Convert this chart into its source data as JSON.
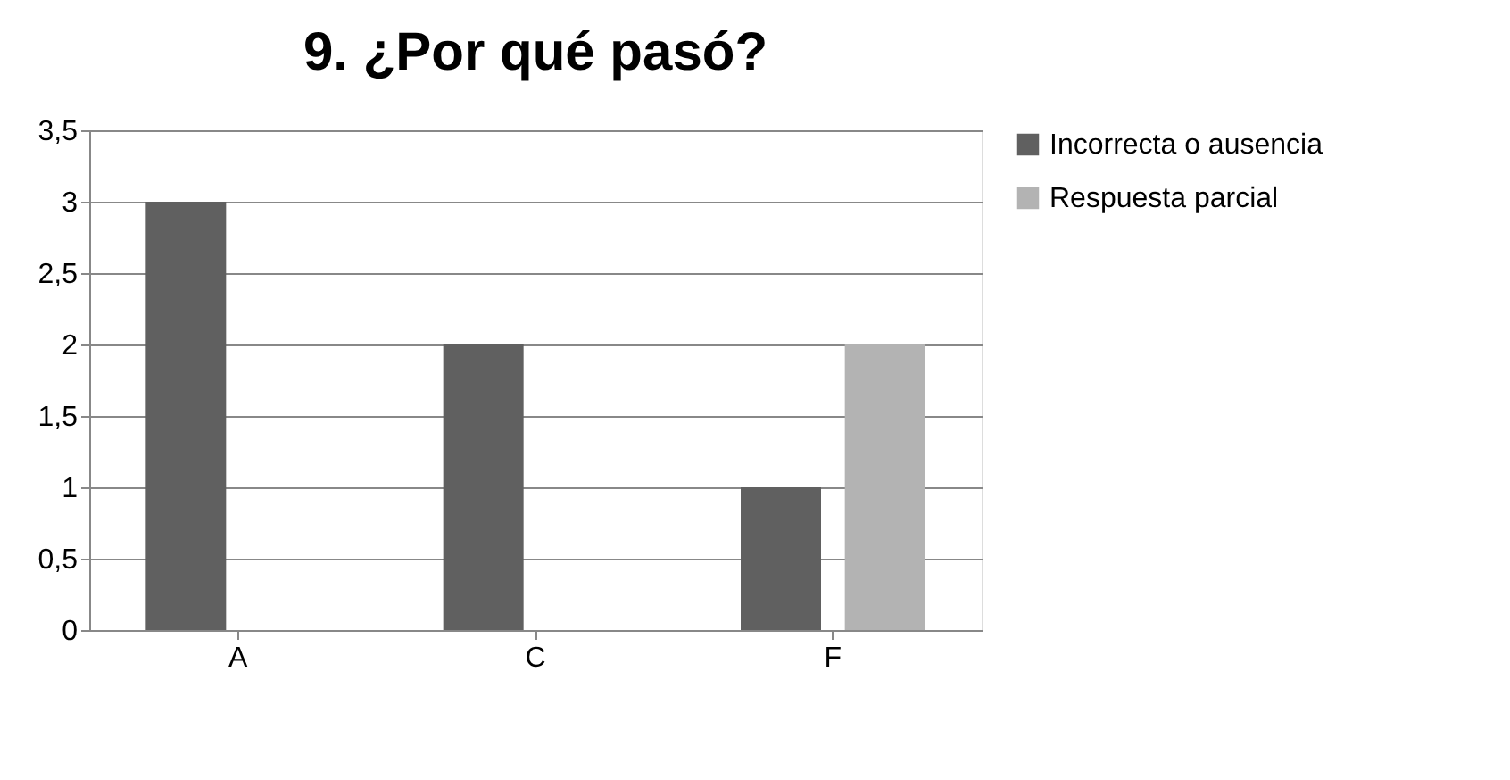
{
  "chart_data": {
    "type": "bar",
    "title": "9. ¿Por qué pasó?",
    "categories": [
      "A",
      "C",
      "F"
    ],
    "series": [
      {
        "name": "Incorrecta o ausencia",
        "color": "#606060",
        "values": [
          3,
          2,
          1
        ]
      },
      {
        "name": "Respuesta parcial",
        "color": "#b3b3b3",
        "values": [
          null,
          null,
          2
        ]
      }
    ],
    "ylim": [
      0,
      3.5
    ],
    "yticks": [
      0,
      {
        "value": 0.5,
        "label": "0,5"
      },
      1,
      {
        "value": 1.5,
        "label": "1,5"
      },
      2,
      {
        "value": 2.5,
        "label": "2,5"
      },
      3,
      {
        "value": 3.5,
        "label": "3,5"
      }
    ],
    "grid": "y",
    "legend": "right"
  }
}
